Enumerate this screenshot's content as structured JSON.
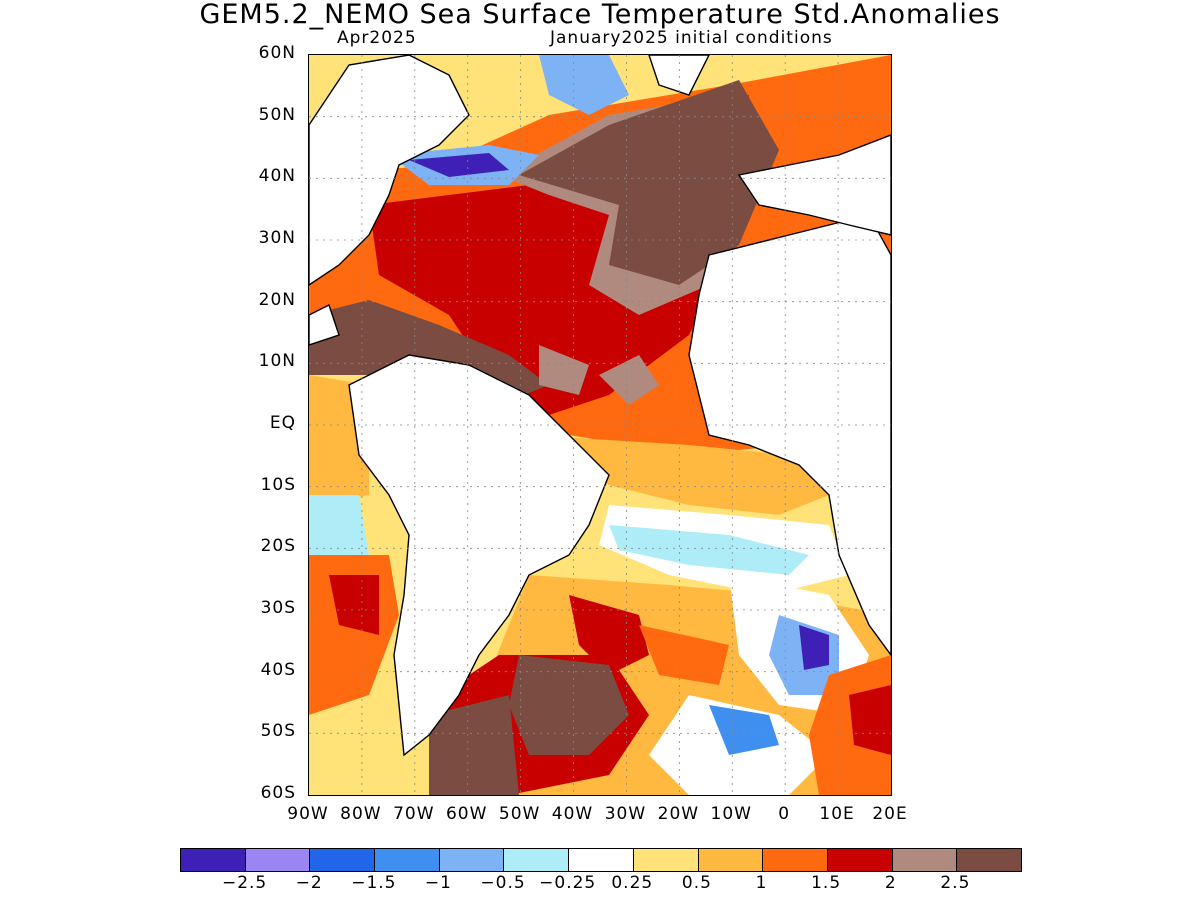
{
  "title": "GEM5.2_NEMO Sea Surface Temperature Std.Anomalies",
  "subtitle_left": "Apr2025",
  "subtitle_right": "January2025 initial conditions",
  "lat_labels": [
    "60N",
    "50N",
    "40N",
    "30N",
    "20N",
    "10N",
    "EQ",
    "10S",
    "20S",
    "30S",
    "40S",
    "50S",
    "60S"
  ],
  "lon_labels": [
    "90W",
    "80W",
    "70W",
    "60W",
    "50W",
    "40W",
    "30W",
    "20W",
    "10W",
    "0",
    "10E",
    "20E"
  ],
  "extent": {
    "lon_min": -90,
    "lon_max": 20,
    "lat_min": -60,
    "lat_max": 60
  },
  "colorbar": {
    "colors": [
      "#3f20b7",
      "#9b85f2",
      "#2166e8",
      "#3f8ff0",
      "#7db3f5",
      "#aeecf7",
      "#ffffff",
      "#ffe278",
      "#ffb940",
      "#ff6a10",
      "#c80000",
      "#b08a7e",
      "#7a4c42"
    ],
    "labels": [
      "−2.5",
      "−2",
      "−1.5",
      "−1",
      "−0.5",
      "−0.25",
      "0.25",
      "0.5",
      "1",
      "1.5",
      "2",
      "2.5"
    ]
  }
}
